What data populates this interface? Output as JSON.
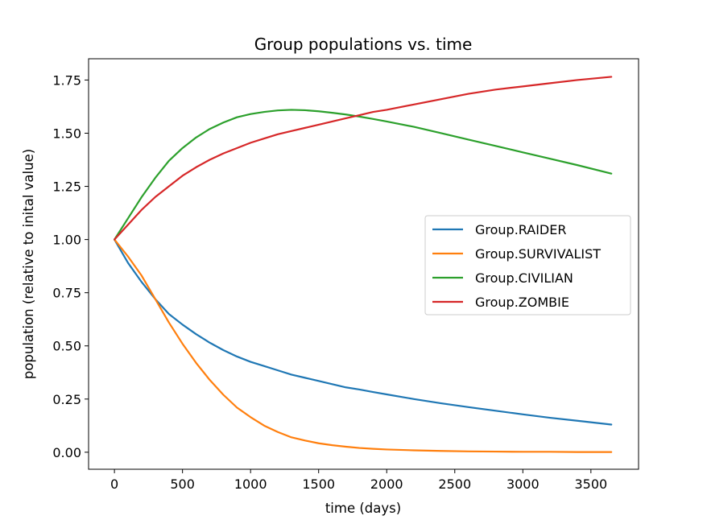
{
  "chart_data": {
    "type": "line",
    "title": "Group populations vs. time",
    "xlabel": "time (days)",
    "ylabel": "population (relative to inital value)",
    "xlim": [
      -190,
      3850
    ],
    "ylim": [
      -0.08,
      1.85
    ],
    "xticks": [
      0,
      500,
      1000,
      1500,
      2000,
      2500,
      3000,
      3500
    ],
    "xtick_labels": [
      "0",
      "500",
      "1000",
      "1500",
      "2000",
      "2500",
      "3000",
      "3500"
    ],
    "yticks": [
      0.0,
      0.25,
      0.5,
      0.75,
      1.0,
      1.25,
      1.5,
      1.75
    ],
    "ytick_labels": [
      "0.00",
      "0.25",
      "0.50",
      "0.75",
      "1.00",
      "1.25",
      "1.50",
      "1.75"
    ],
    "grid": false,
    "legend_position": "center-right",
    "x": [
      0,
      100,
      200,
      300,
      400,
      500,
      600,
      700,
      800,
      900,
      1000,
      1100,
      1200,
      1300,
      1400,
      1500,
      1600,
      1700,
      1800,
      1900,
      2000,
      2200,
      2400,
      2600,
      2800,
      3000,
      3200,
      3400,
      3650
    ],
    "series": [
      {
        "name": "Group.RAIDER",
        "color": "#1f77b4",
        "values": [
          1.0,
          0.89,
          0.8,
          0.72,
          0.65,
          0.6,
          0.555,
          0.515,
          0.48,
          0.45,
          0.425,
          0.405,
          0.385,
          0.365,
          0.35,
          0.335,
          0.32,
          0.305,
          0.295,
          0.283,
          0.272,
          0.25,
          0.23,
          0.212,
          0.195,
          0.178,
          0.162,
          0.148,
          0.13
        ]
      },
      {
        "name": "Group.SURVIVALIST",
        "color": "#ff7f0e",
        "values": [
          1.0,
          0.92,
          0.83,
          0.72,
          0.61,
          0.51,
          0.42,
          0.34,
          0.27,
          0.21,
          0.165,
          0.125,
          0.095,
          0.07,
          0.055,
          0.042,
          0.033,
          0.026,
          0.02,
          0.016,
          0.013,
          0.009,
          0.006,
          0.004,
          0.003,
          0.002,
          0.002,
          0.001,
          0.001
        ]
      },
      {
        "name": "Group.CIVILIAN",
        "color": "#2ca02c",
        "values": [
          1.0,
          1.1,
          1.2,
          1.29,
          1.37,
          1.43,
          1.48,
          1.52,
          1.55,
          1.575,
          1.59,
          1.6,
          1.607,
          1.61,
          1.608,
          1.603,
          1.596,
          1.588,
          1.578,
          1.567,
          1.555,
          1.53,
          1.5,
          1.47,
          1.44,
          1.41,
          1.38,
          1.35,
          1.31
        ]
      },
      {
        "name": "Group.ZOMBIE",
        "color": "#d62728",
        "values": [
          1.0,
          1.07,
          1.14,
          1.2,
          1.25,
          1.3,
          1.34,
          1.375,
          1.405,
          1.43,
          1.455,
          1.475,
          1.495,
          1.51,
          1.525,
          1.54,
          1.555,
          1.57,
          1.585,
          1.6,
          1.61,
          1.635,
          1.66,
          1.685,
          1.705,
          1.72,
          1.735,
          1.75,
          1.765
        ]
      }
    ]
  }
}
